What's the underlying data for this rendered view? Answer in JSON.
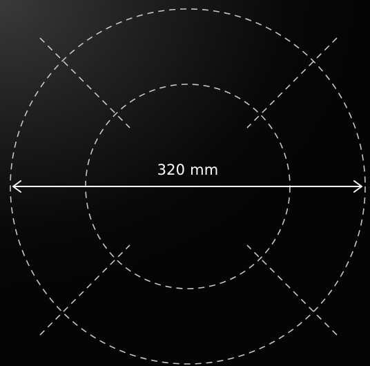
{
  "dimension": {
    "label": "320 mm"
  },
  "colors": {
    "guide_lines": "#c8c8c8",
    "arrow": "#ffffff",
    "text": "#ffffff"
  }
}
